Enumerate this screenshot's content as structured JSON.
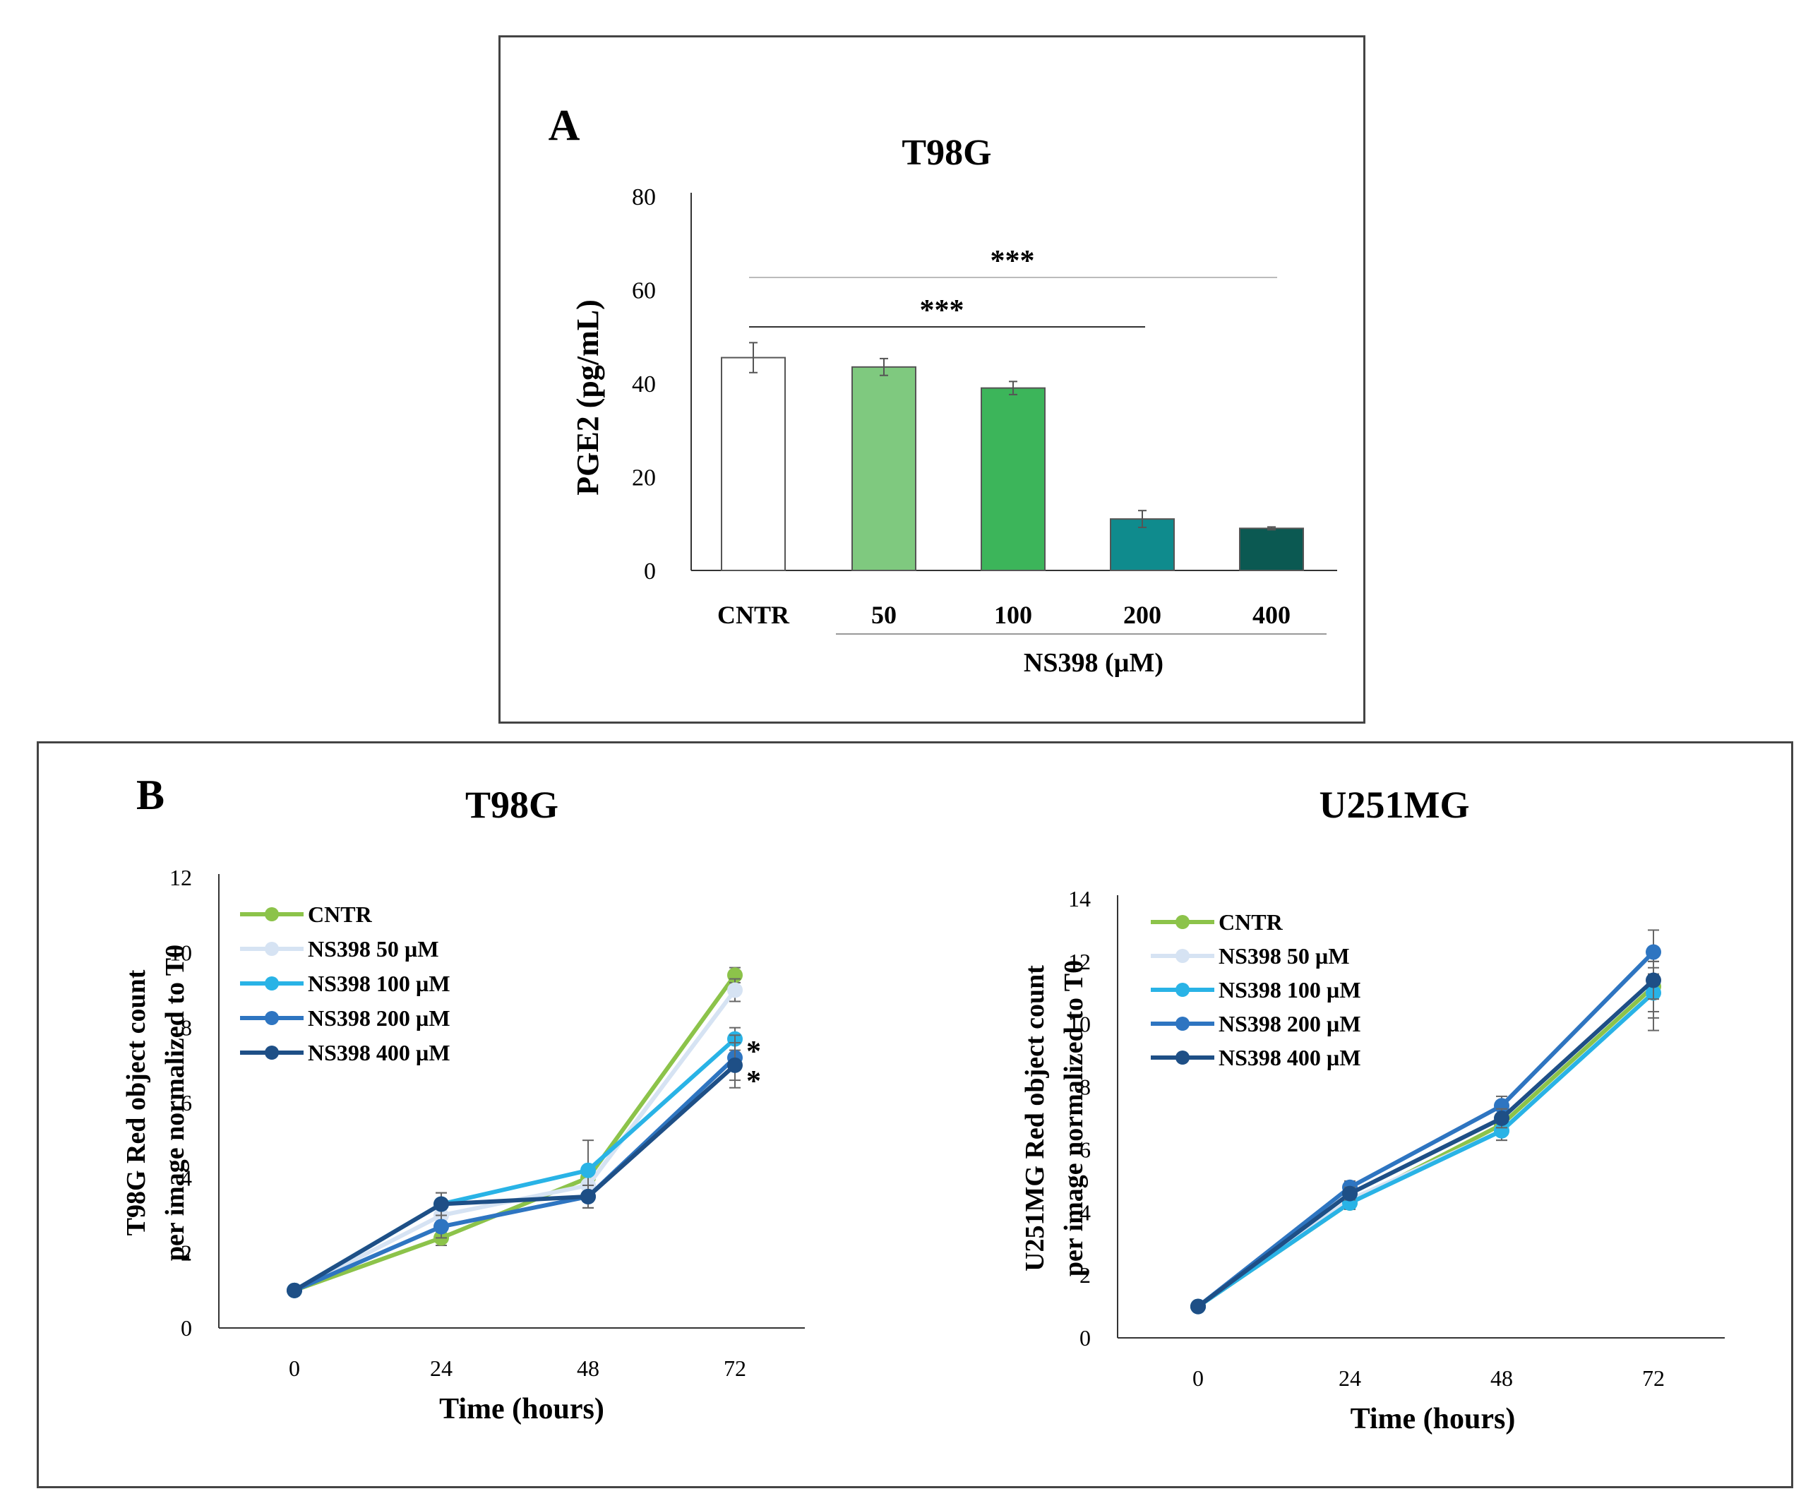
{
  "colors": {
    "cntr_line": "#8cc34a",
    "ns50": "#d6e3f3",
    "ns100": "#29b3e6",
    "ns200": "#2e75c1",
    "ns400": "#1e4f86",
    "bar_cntr": "#ffffff",
    "bar_50": "#7fc97f",
    "bar_100": "#3cb55a",
    "bar_200": "#0f8b8d",
    "bar_400": "#0b5952"
  },
  "panel_a": {
    "letter": "A"
  },
  "panel_b": {
    "letter": "B"
  },
  "chart_data": [
    {
      "id": "A",
      "type": "bar",
      "title": "T98G",
      "ylabel": "PGE2 (pg/mL)",
      "xlabel": "NS398 (µM)",
      "ylim": [
        0,
        80
      ],
      "yticks": [
        0,
        20,
        40,
        60,
        80
      ],
      "categories": [
        "CNTR",
        "50",
        "100",
        "200",
        "400"
      ],
      "values": [
        45.5,
        43.5,
        39,
        11,
        9
      ],
      "errors": [
        3.2,
        1.8,
        1.4,
        1.8,
        0.3
      ],
      "significance": [
        {
          "label": "***",
          "from": "CNTR",
          "to": "200"
        },
        {
          "label": "***",
          "from": "CNTR",
          "to": "400"
        }
      ]
    },
    {
      "id": "B1",
      "type": "line",
      "title": "T98G",
      "ylabel": [
        "T98G Red object count",
        "per image normalized to T0"
      ],
      "xlabel": "Time (hours)",
      "ylim": [
        0,
        12
      ],
      "yticks": [
        0,
        2,
        4,
        6,
        8,
        10,
        12
      ],
      "x": [
        0,
        24,
        48,
        72
      ],
      "series": [
        {
          "name": "CNTR",
          "values": [
            1,
            2.4,
            4.0,
            9.4
          ],
          "errors": [
            0,
            0.2,
            0.2,
            0.2
          ]
        },
        {
          "name": "NS398  50 µM",
          "values": [
            1,
            3.0,
            3.8,
            9.0
          ],
          "errors": [
            0,
            0.3,
            0.3,
            0.3
          ]
        },
        {
          "name": "NS398  100 µM",
          "values": [
            1,
            3.3,
            4.2,
            7.7
          ],
          "errors": [
            0,
            0.3,
            0.8,
            0.3
          ]
        },
        {
          "name": "NS398  200 µM",
          "values": [
            1,
            2.7,
            3.5,
            7.2
          ],
          "errors": [
            0,
            0.3,
            0.3,
            0.6
          ]
        },
        {
          "name": "NS398  400 µM",
          "values": [
            1,
            3.3,
            3.5,
            7.0
          ],
          "errors": [
            0,
            0.3,
            0.3,
            0.6
          ]
        }
      ],
      "annotations": [
        "*",
        "*"
      ]
    },
    {
      "id": "B2",
      "type": "line",
      "title": "U251MG",
      "ylabel": [
        "U251MG Red object count",
        "per image normalized to T0"
      ],
      "xlabel": "Time (hours)",
      "ylim": [
        0,
        14
      ],
      "yticks": [
        0,
        2,
        4,
        6,
        8,
        10,
        12,
        14
      ],
      "x": [
        0,
        24,
        48,
        72
      ],
      "series": [
        {
          "name": "CNTR",
          "values": [
            1,
            4.3,
            6.8,
            11.2
          ],
          "errors": [
            0,
            0.2,
            0.3,
            0.8
          ]
        },
        {
          "name": "NS398  50 µM",
          "values": [
            1,
            4.4,
            6.6,
            11.0
          ],
          "errors": [
            0,
            0.2,
            0.3,
            0.8
          ]
        },
        {
          "name": "NS398  100 µM",
          "values": [
            1,
            4.3,
            6.6,
            11.0
          ],
          "errors": [
            0,
            0.2,
            0.3,
            1.2
          ]
        },
        {
          "name": "NS398  200 µM",
          "values": [
            1,
            4.8,
            7.4,
            12.3
          ],
          "errors": [
            0,
            0.2,
            0.3,
            0.7
          ]
        },
        {
          "name": "NS398  400 µM",
          "values": [
            1,
            4.6,
            7.0,
            11.4
          ],
          "errors": [
            0,
            0.2,
            0.3,
            0.6
          ]
        }
      ]
    }
  ]
}
